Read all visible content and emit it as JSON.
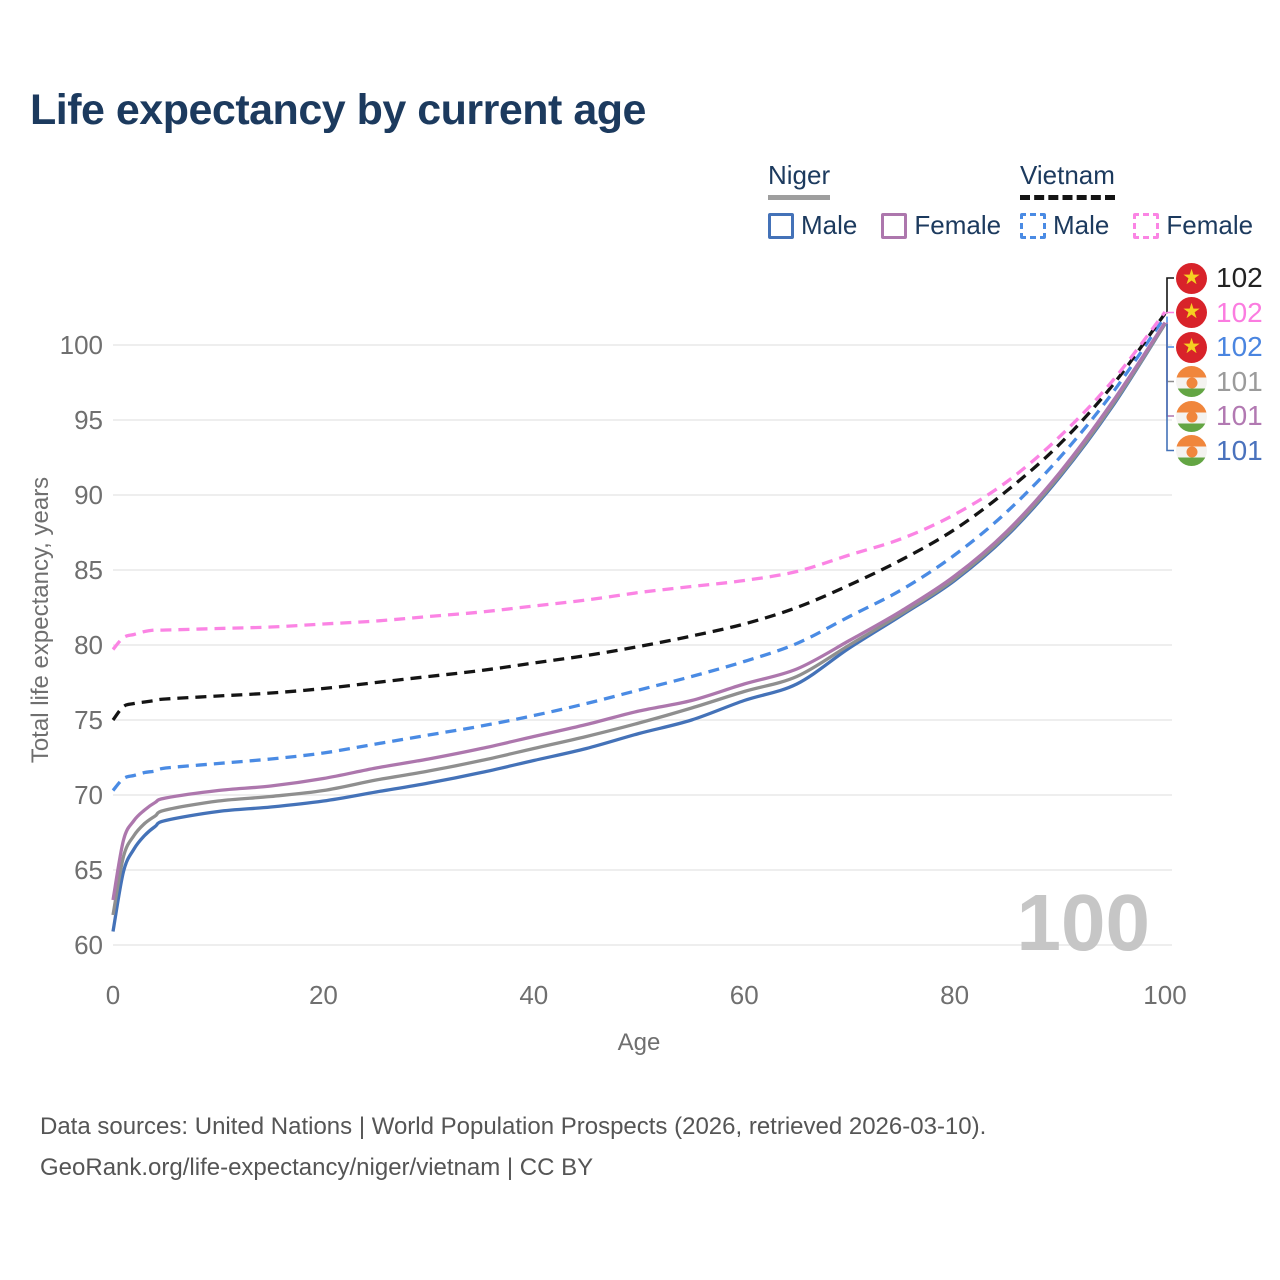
{
  "header": {
    "title": "Life expectancy by current age"
  },
  "legend": {
    "groups": [
      {
        "label": "Niger",
        "style": "solid",
        "underline_color": "#9e9e9e",
        "items": [
          {
            "label": "Male",
            "color": "#4472b8"
          },
          {
            "label": "Female",
            "color": "#ad77ad"
          }
        ]
      },
      {
        "label": "Vietnam",
        "style": "dashed",
        "underline_color": "#141414",
        "items": [
          {
            "label": "Male",
            "color": "#4a8be4"
          },
          {
            "label": "Female",
            "color": "#fb84e4"
          }
        ]
      }
    ]
  },
  "watermark": "100",
  "chart_data": {
    "type": "line",
    "title": "Life expectancy by current age",
    "xlabel": "Age",
    "ylabel": "Total life expectancy, years",
    "xlim": [
      0,
      100
    ],
    "ylim": [
      59,
      103
    ],
    "x_ticks": [
      0,
      20,
      40,
      60,
      80,
      100
    ],
    "y_ticks": [
      60,
      65,
      70,
      75,
      80,
      85,
      90,
      95,
      100
    ],
    "grid": "horizontal",
    "legend_position": "top-right",
    "x": [
      0,
      1,
      2,
      3,
      4,
      5,
      10,
      15,
      20,
      25,
      30,
      35,
      40,
      45,
      50,
      55,
      60,
      65,
      70,
      75,
      80,
      85,
      90,
      95,
      100
    ],
    "series": [
      {
        "key": "niger-male",
        "name": "Niger Male",
        "country": "Niger",
        "sex": "Male",
        "color": "#4472b8",
        "dashed": false,
        "end_label": "101",
        "values": [
          60.9,
          64.9,
          66.4,
          67.3,
          67.9,
          68.3,
          68.9,
          69.2,
          69.6,
          70.2,
          70.8,
          71.5,
          72.3,
          73.1,
          74.1,
          75.0,
          76.3,
          77.4,
          79.8,
          82.0,
          84.3,
          87.3,
          91.2,
          95.9,
          101.4
        ]
      },
      {
        "key": "niger-all",
        "name": "Niger",
        "country": "Niger",
        "sex": "All",
        "color": "#8f8f8f",
        "dashed": false,
        "end_label": "101",
        "values": [
          62.0,
          65.9,
          67.3,
          68.1,
          68.6,
          69.0,
          69.6,
          69.9,
          70.3,
          71.0,
          71.6,
          72.3,
          73.1,
          73.9,
          74.8,
          75.8,
          76.9,
          77.9,
          80.0,
          82.1,
          84.4,
          87.4,
          91.3,
          96.0,
          101.4
        ]
      },
      {
        "key": "niger-female",
        "name": "Niger Female",
        "country": "Niger",
        "sex": "Female",
        "color": "#ad77ad",
        "dashed": false,
        "end_label": "101",
        "values": [
          63.0,
          67.0,
          68.3,
          69.0,
          69.5,
          69.8,
          70.3,
          70.6,
          71.1,
          71.8,
          72.4,
          73.1,
          73.9,
          74.7,
          75.6,
          76.3,
          77.4,
          78.4,
          80.3,
          82.3,
          84.6,
          87.6,
          91.5,
          96.2,
          101.5
        ]
      },
      {
        "key": "vietnam-male",
        "name": "Vietnam Male",
        "country": "Vietnam",
        "sex": "Male",
        "color": "#4a8be4",
        "dashed": true,
        "end_label": "102",
        "values": [
          70.3,
          71.1,
          71.3,
          71.5,
          71.6,
          71.8,
          72.1,
          72.4,
          72.8,
          73.4,
          74.0,
          74.6,
          75.3,
          76.1,
          77.0,
          77.9,
          78.9,
          80.1,
          81.9,
          83.7,
          86.0,
          88.9,
          92.5,
          96.8,
          101.9
        ]
      },
      {
        "key": "vietnam-all",
        "name": "Vietnam",
        "country": "Vietnam",
        "sex": "All",
        "color": "#141414",
        "dashed": true,
        "end_label": "102",
        "values": [
          75.0,
          75.9,
          76.1,
          76.2,
          76.3,
          76.4,
          76.6,
          76.8,
          77.1,
          77.5,
          77.9,
          78.3,
          78.8,
          79.3,
          79.9,
          80.6,
          81.4,
          82.5,
          84.0,
          85.7,
          87.7,
          90.3,
          93.4,
          97.3,
          102.1
        ]
      },
      {
        "key": "vietnam-female",
        "name": "Vietnam Female",
        "country": "Vietnam",
        "sex": "Female",
        "color": "#fb84e4",
        "dashed": true,
        "end_label": "102",
        "values": [
          79.7,
          80.5,
          80.7,
          80.9,
          81.0,
          81.0,
          81.1,
          81.2,
          81.4,
          81.6,
          81.9,
          82.2,
          82.6,
          83.0,
          83.5,
          83.9,
          84.3,
          84.9,
          86.0,
          87.1,
          88.7,
          90.9,
          93.9,
          97.6,
          102.2
        ]
      }
    ]
  },
  "end_labels": [
    {
      "value": "102",
      "flag": "vietnam",
      "series_index": 4,
      "label_color": "#222222"
    },
    {
      "value": "102",
      "flag": "vietnam",
      "series_index": 5,
      "label_color": "#fb7ce0"
    },
    {
      "value": "102",
      "flag": "vietnam",
      "series_index": 3,
      "label_color": "#4a85e0"
    },
    {
      "value": "101",
      "flag": "niger",
      "series_index": 1,
      "label_color": "#9b9b9b"
    },
    {
      "value": "101",
      "flag": "niger",
      "series_index": 2,
      "label_color": "#b279b2"
    },
    {
      "value": "101",
      "flag": "niger",
      "series_index": 0,
      "label_color": "#4a72bd"
    }
  ],
  "footer": {
    "line1": "Data sources: United Nations | World Population Prospects (2026, retrieved 2026-03-10).",
    "line2": "GeoRank.org/life-expectancy/niger/vietnam | CC BY"
  }
}
